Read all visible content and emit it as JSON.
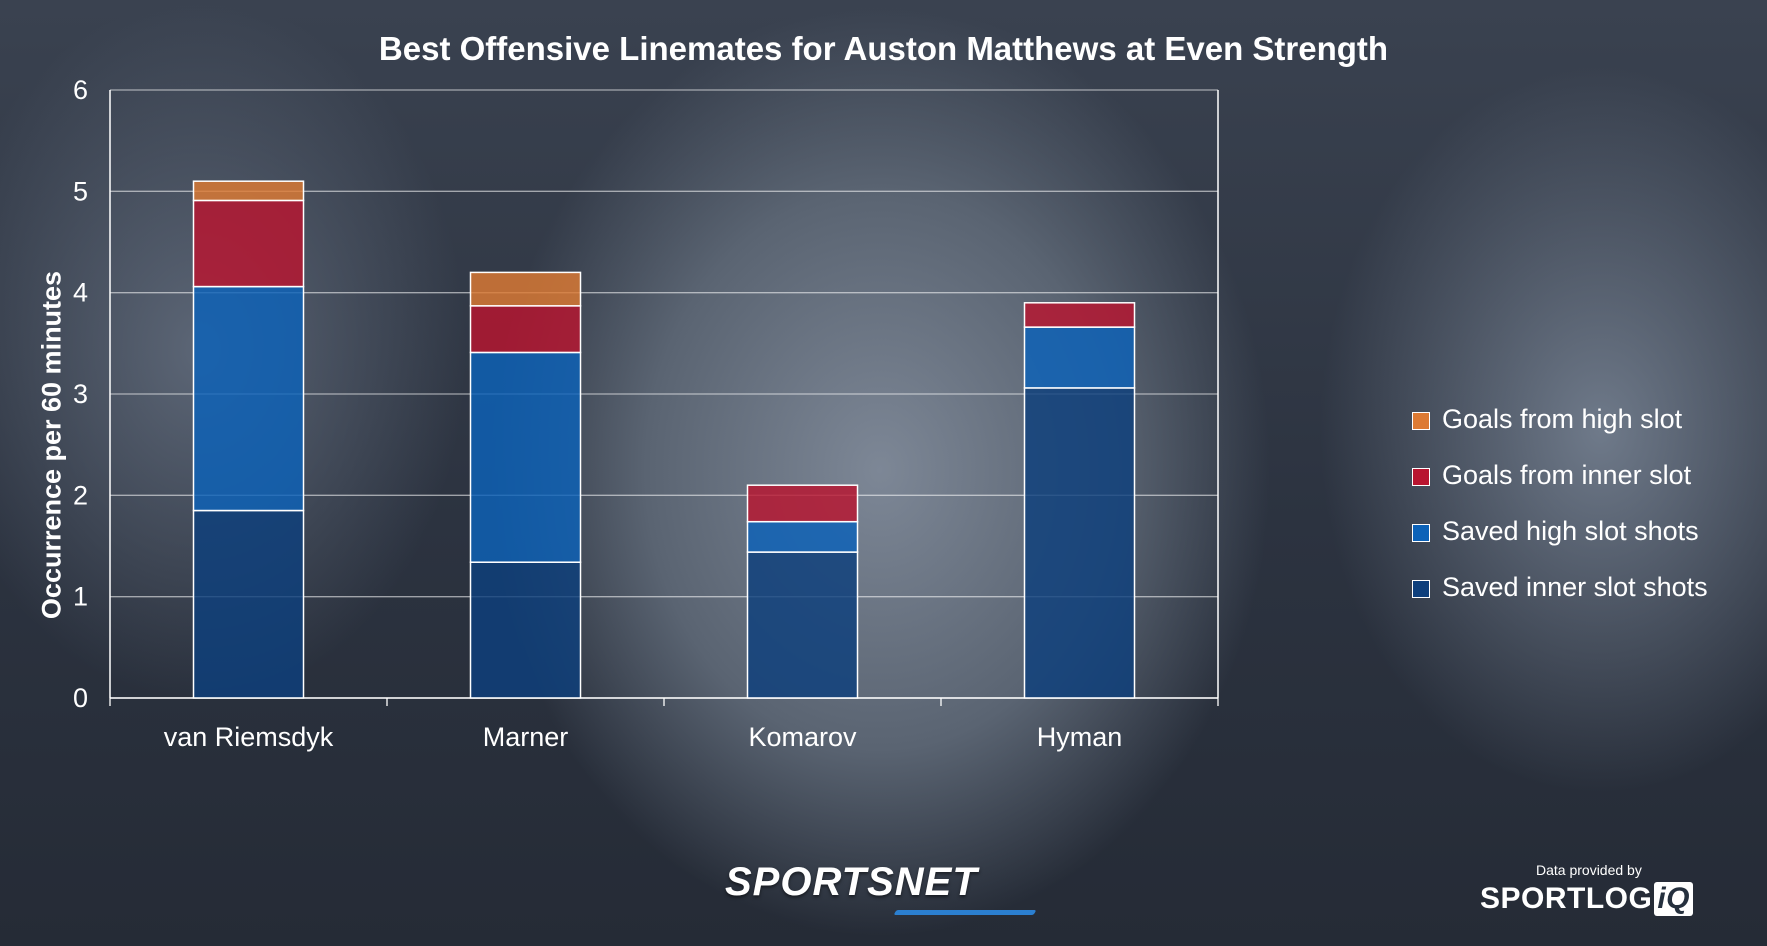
{
  "chart_data": {
    "type": "bar",
    "stacked": true,
    "title": "Best Offensive Linemates for Auston Matthews at Even Strength",
    "xlabel": "",
    "ylabel": "Occurrence per 60 minutes",
    "categories": [
      "van Riemsdyk",
      "Marner",
      "Komarov",
      "Hyman"
    ],
    "ylim": [
      0,
      6
    ],
    "yticks": [
      "0",
      "1",
      "2",
      "3",
      "4",
      "5",
      "6"
    ],
    "grid": true,
    "legend_position": "right",
    "series": [
      {
        "name": "Saved inner slot shots",
        "color": "#0e3f7c",
        "values": [
          1.85,
          1.34,
          1.44,
          3.06
        ]
      },
      {
        "name": "Saved high slot shots",
        "color": "#0c62b8",
        "values": [
          2.21,
          2.07,
          0.3,
          0.6
        ]
      },
      {
        "name": "Goals from inner slot",
        "color": "#b81530",
        "values": [
          0.85,
          0.46,
          0.36,
          0.24
        ]
      },
      {
        "name": "Goals from high slot",
        "color": "#dd7a33",
        "values": [
          0.19,
          0.33,
          0.0,
          0.0
        ]
      }
    ]
  },
  "legend_order": [
    3,
    2,
    1,
    0
  ],
  "branding": {
    "sportsnet": "SPORTSNET",
    "data_provided_by": "Data provided by",
    "sportlogiq_main": "SPORTLOG",
    "sportlogiq_iq": "iQ"
  }
}
